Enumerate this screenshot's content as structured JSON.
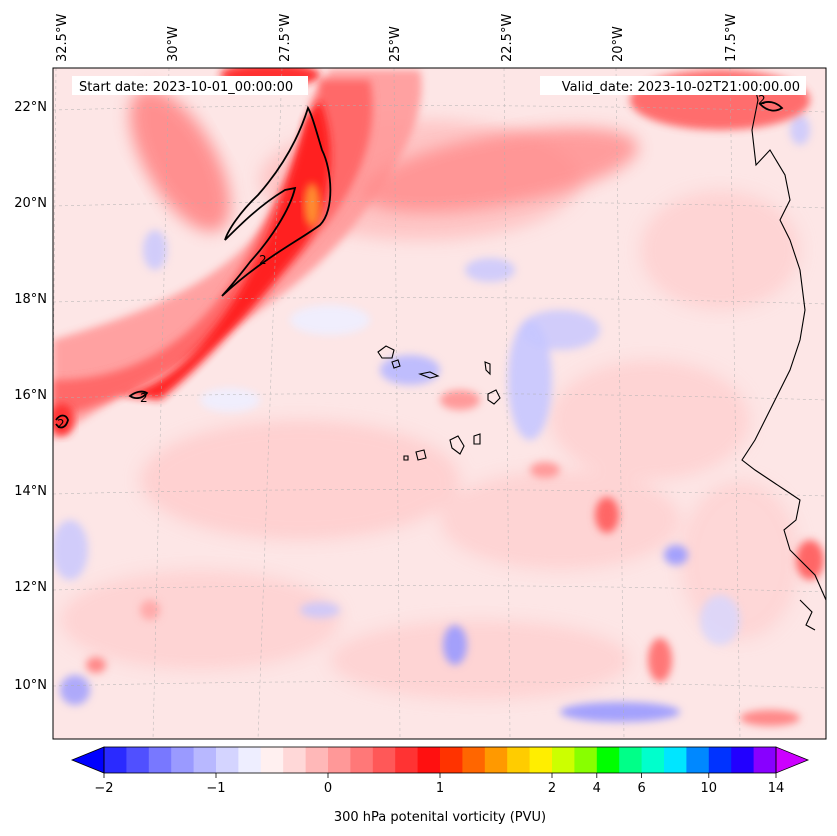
{
  "map": {
    "start_label": "Start date: 2023-10-01_00:00:00",
    "valid_label": "Valid_date: 2023-10-02T21:00:00.00",
    "lon_labels": [
      "32.5°W",
      "30°W",
      "27.5°W",
      "25°W",
      "22.5°W",
      "20°W",
      "17.5°W"
    ],
    "lat_labels": [
      "22°N",
      "20°N",
      "18°N",
      "16°N",
      "14°N",
      "12°N",
      "10°N"
    ],
    "contour_labels": [
      "2",
      "2",
      "2",
      "2"
    ],
    "pv_contour_value_pvu": 2,
    "extent": {
      "lon_min": -33.0,
      "lon_max": -16.0,
      "lat_min": 8.8,
      "lat_max": 22.8
    }
  },
  "colorbar": {
    "label": "300 hPa potenital vorticity (PVU)",
    "tick_labels": [
      "−2",
      "−1",
      "0",
      "1",
      "2",
      "4",
      "6",
      "10",
      "14"
    ],
    "tick_values": [
      -2,
      -1,
      0,
      1,
      2,
      4,
      6,
      10,
      14
    ],
    "extend": "both",
    "colors": [
      "#0000ff",
      "#2a2aff",
      "#5050ff",
      "#7878ff",
      "#9a9aff",
      "#b8b8ff",
      "#d4d4ff",
      "#eeeeff",
      "#fff0f0",
      "#ffd8d8",
      "#ffb8b8",
      "#ff9898",
      "#ff7878",
      "#ff5858",
      "#ff3333",
      "#ff1010",
      "#ff3300",
      "#ff6600",
      "#ff9900",
      "#ffcc00",
      "#ffee00",
      "#ccff00",
      "#88ff00",
      "#00ff00",
      "#00ff88",
      "#00ffcc",
      "#00e6ff",
      "#0088ff",
      "#0033ff",
      "#2200ff",
      "#8800ff",
      "#cc00ff"
    ]
  }
}
